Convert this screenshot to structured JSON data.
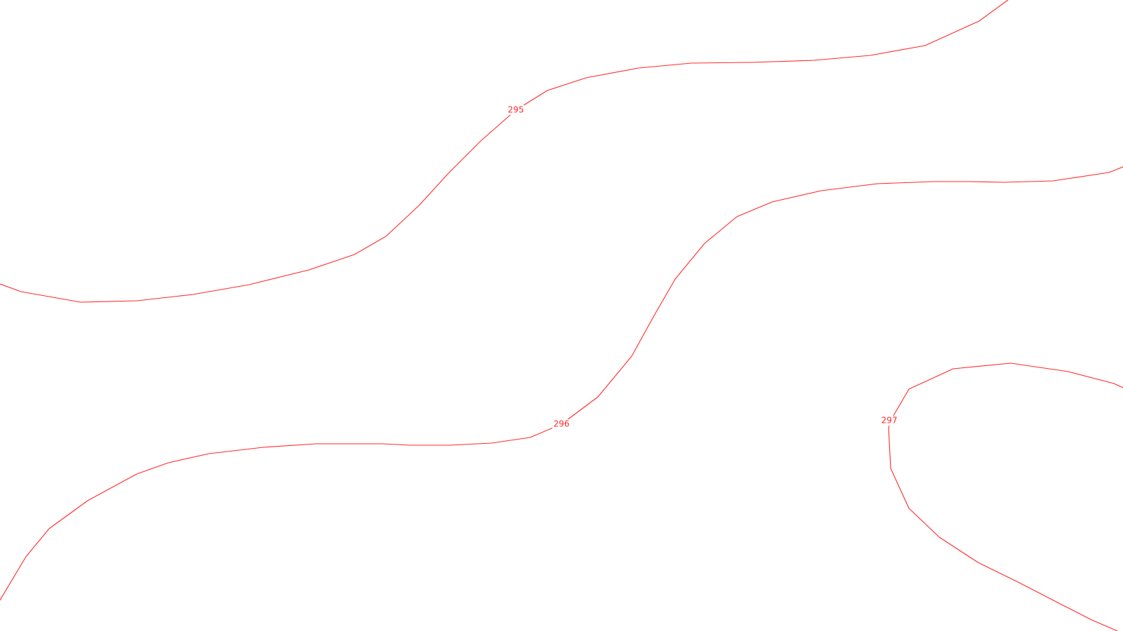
{
  "map": {
    "line_color": "#ff2a2a",
    "background": "#ffffff",
    "contours": [
      {
        "id": "contour-295",
        "elevation": "295"
      },
      {
        "id": "contour-296",
        "elevation": "296"
      },
      {
        "id": "contour-297",
        "elevation": "297"
      }
    ]
  }
}
